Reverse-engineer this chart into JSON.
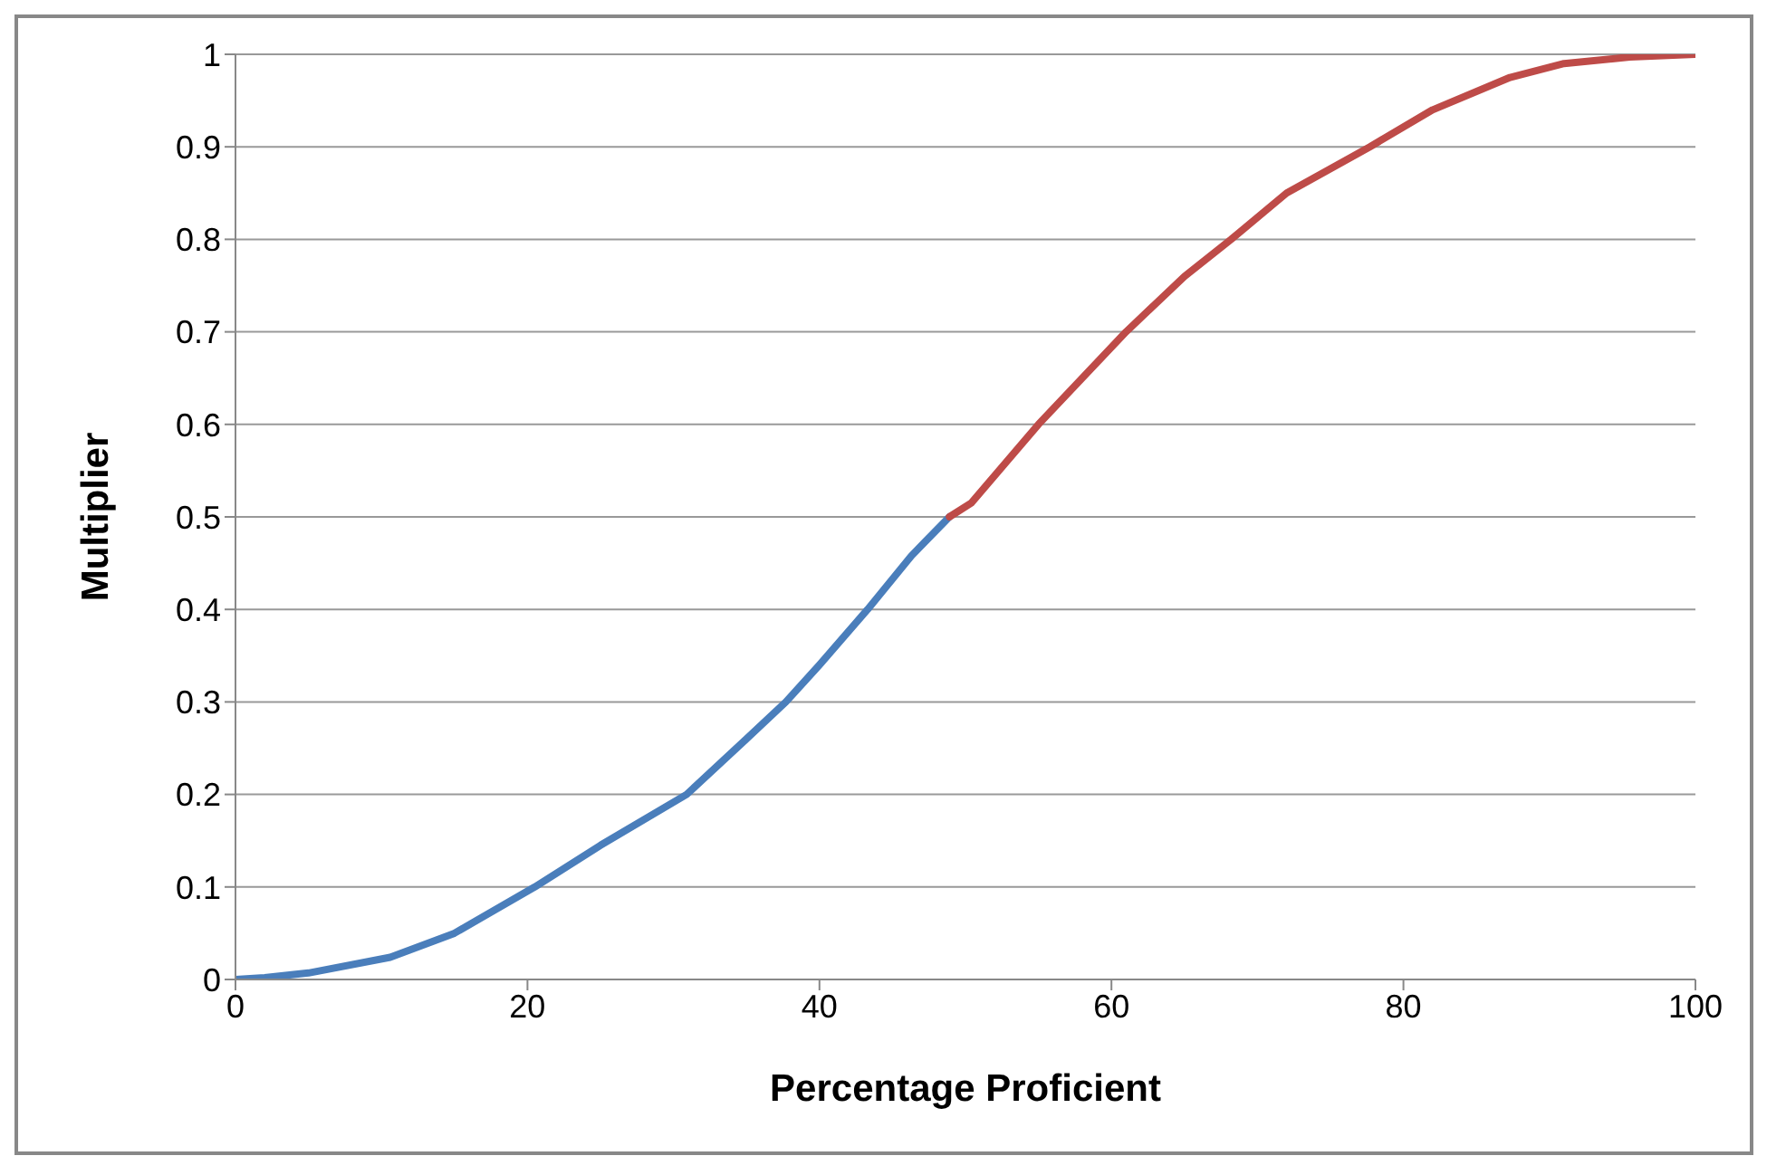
{
  "chart_data": {
    "type": "line",
    "xlabel": "Percentage Proficient",
    "ylabel": "Multiplier",
    "xlim": [
      0,
      100
    ],
    "xticks": [
      0,
      20,
      40,
      60,
      80,
      100
    ],
    "ylim": [
      0,
      1
    ],
    "yticks": [
      0,
      0.1,
      0.2,
      0.3,
      0.4,
      0.5,
      0.6,
      0.7,
      0.8,
      0.9,
      1
    ],
    "grid": "y",
    "marker": "none",
    "line_style": "solid",
    "series": [
      {
        "color": "#4a7ebb",
        "x": [
          0,
          2,
          5,
          10.6,
          15,
          20.5,
          25,
          30.9,
          35,
          37.7,
          40,
          43.3,
          46.3,
          48.9
        ],
        "values": [
          0,
          0.002,
          0.007,
          0.024,
          0.05,
          0.1,
          0.145,
          0.2,
          0.26,
          0.3,
          0.34,
          0.4,
          0.458,
          0.5
        ]
      },
      {
        "color": "#be4b48",
        "x": [
          48.9,
          50.4,
          55,
          61,
          65,
          68.2,
          72,
          77.7,
          82,
          87.3,
          91,
          95.5,
          100
        ],
        "values": [
          0.5,
          0.515,
          0.6,
          0.7,
          0.76,
          0.8,
          0.85,
          0.9,
          0.94,
          0.975,
          0.99,
          0.997,
          1
        ]
      }
    ]
  }
}
